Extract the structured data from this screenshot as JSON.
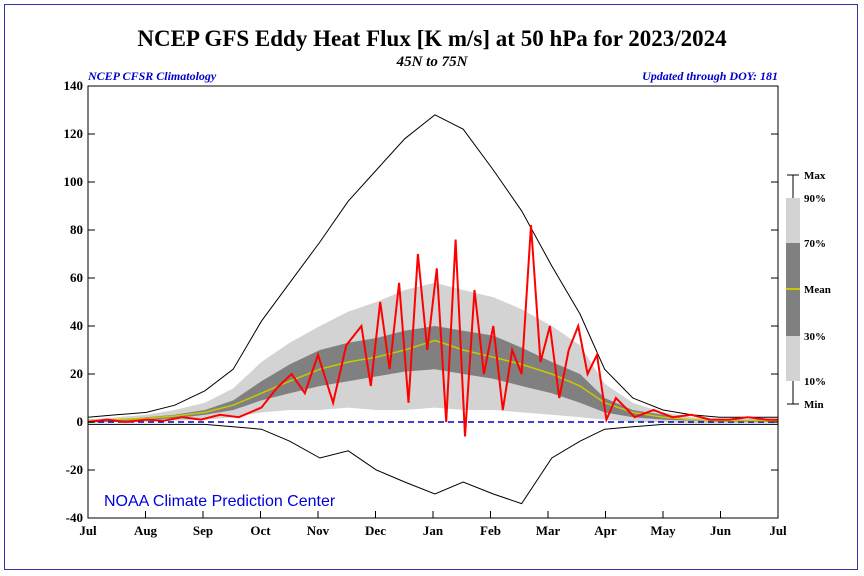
{
  "header": {
    "title": "NCEP GFS Eddy Heat Flux [K m/s] at 50 hPa for 2023/2024",
    "subtitle": "45N to 75N",
    "left_note": "NCEP CFSR Climatology",
    "right_note": "Updated through DOY: 181",
    "credit": "NOAA Climate Prediction Center"
  },
  "colors": {
    "band_outer": "#d3d3d3",
    "band_inner": "#808080",
    "mean": "#c8c800",
    "current": "#ff0000",
    "extremes": "#000000",
    "zero_line": "#0000cc",
    "frame": "#3333aa"
  },
  "legend": {
    "labels": [
      "Max",
      "90%",
      "70%",
      "Mean",
      "30%",
      "10%",
      "Min"
    ]
  },
  "chart_data": {
    "type": "area",
    "title": "NCEP GFS Eddy Heat Flux [K m/s] at 50 hPa for 2023/2024",
    "subtitle": "45N to 75N",
    "xlabel": "",
    "ylabel": "",
    "x_tick_labels": [
      "Jul",
      "Aug",
      "Sep",
      "Oct",
      "Nov",
      "Dec",
      "Jan",
      "Feb",
      "Mar",
      "Apr",
      "May",
      "Jun",
      "Jul"
    ],
    "y_ticks": [
      -40,
      -20,
      0,
      20,
      40,
      60,
      80,
      100,
      120,
      140
    ],
    "xlim": [
      0,
      366
    ],
    "ylim": [
      -40,
      140
    ],
    "grid": false,
    "legend_position": "right",
    "climatology": {
      "day": [
        0,
        15,
        31,
        46,
        62,
        77,
        92,
        107,
        123,
        138,
        153,
        168,
        184,
        199,
        215,
        230,
        246,
        261,
        274,
        289,
        305,
        320,
        335,
        350,
        366
      ],
      "max": [
        2,
        3,
        4,
        7,
        13,
        22,
        42,
        58,
        75,
        92,
        105,
        118,
        128,
        122,
        105,
        88,
        65,
        45,
        22,
        10,
        5,
        3,
        2,
        2,
        2
      ],
      "p90": [
        1,
        2,
        3,
        5,
        8,
        14,
        25,
        33,
        40,
        46,
        50,
        55,
        58,
        55,
        52,
        47,
        40,
        32,
        16,
        8,
        4,
        2,
        1,
        1,
        1
      ],
      "p70": [
        1,
        1,
        2,
        3,
        5,
        9,
        17,
        24,
        30,
        33,
        35,
        38,
        40,
        38,
        36,
        31,
        25,
        20,
        10,
        5,
        3,
        1,
        1,
        1,
        1
      ],
      "mean": [
        0.5,
        1,
        1.5,
        2.5,
        4,
        7,
        12,
        17,
        22,
        25,
        27,
        30,
        34,
        30,
        27,
        24,
        20,
        15,
        8,
        4,
        2,
        1,
        0.5,
        0.5,
        0.5
      ],
      "p30": [
        0,
        0,
        1,
        1.5,
        3,
        5,
        9,
        12,
        15,
        17,
        19,
        21,
        22,
        20,
        18,
        15,
        12,
        8,
        4,
        2,
        1,
        0.5,
        0,
        0,
        0
      ],
      "p10": [
        -0.5,
        0,
        0,
        0.5,
        1,
        2,
        4,
        5,
        5,
        6,
        5,
        5,
        6,
        5,
        5,
        4,
        3,
        2,
        1,
        0,
        0,
        -0.5,
        -0.5,
        -0.5,
        -0.5
      ],
      "min": [
        -1,
        -1,
        -1,
        -1,
        -1,
        -2,
        -3,
        -8,
        -15,
        -12,
        -20,
        -25,
        -30,
        -25,
        -30,
        -34,
        -15,
        -8,
        -3,
        -2,
        -1,
        -1,
        -1,
        -1,
        -1
      ]
    },
    "series": [
      {
        "name": "2023/2024",
        "day": [
          0,
          10,
          20,
          31,
          40,
          50,
          60,
          70,
          80,
          92,
          100,
          108,
          115,
          122,
          130,
          137,
          145,
          150,
          155,
          160,
          165,
          170,
          175,
          180,
          185,
          190,
          195,
          200,
          205,
          210,
          215,
          220,
          225,
          230,
          235,
          240,
          245,
          250,
          255,
          260,
          265,
          270,
          275,
          280,
          290,
          300,
          310,
          320,
          330,
          340,
          350,
          360,
          366
        ],
        "values": [
          0,
          1,
          0,
          1,
          0.5,
          2,
          1,
          3,
          2,
          6,
          14,
          20,
          12,
          28,
          8,
          32,
          40,
          15,
          50,
          22,
          58,
          8,
          70,
          30,
          64,
          0,
          76,
          -6,
          55,
          20,
          40,
          5,
          30,
          20,
          82,
          25,
          40,
          10,
          30,
          40,
          20,
          28,
          1,
          10,
          2,
          5,
          2,
          3,
          1,
          1,
          2,
          1,
          1
        ]
      }
    ]
  }
}
